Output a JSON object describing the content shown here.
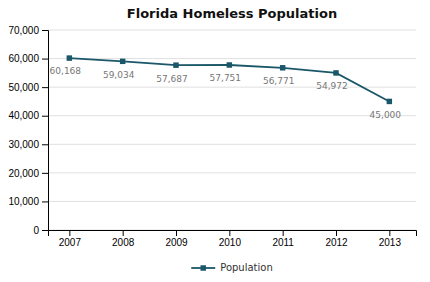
{
  "chart_data": {
    "type": "line",
    "title": "Florida Homeless Population",
    "x": [
      2007,
      2008,
      2009,
      2010,
      2011,
      2012,
      2013
    ],
    "series": [
      {
        "name": "Population",
        "color": "#1a5769",
        "marker": "square",
        "values": [
          60168,
          59034,
          57687,
          57751,
          56771,
          54972,
          45000
        ],
        "value_labels": [
          "60,168",
          "59,034",
          "57,687",
          "57,751",
          "56,771",
          "54,972",
          "45,000"
        ]
      }
    ],
    "xlim": [
      2006.6,
      2013.5
    ],
    "xticks": [
      2007,
      2008,
      2009,
      2010,
      2011,
      2012,
      2013
    ],
    "ylim": [
      0,
      70000
    ],
    "yticks": [
      0,
      {
        "value": 10000,
        "label": "10,000"
      },
      {
        "value": 20000,
        "label": "20,000"
      },
      {
        "value": 30000,
        "label": "30,000"
      },
      {
        "value": 40000,
        "label": "40,000"
      },
      {
        "value": 50000,
        "label": "50,000"
      },
      {
        "value": 60000,
        "label": "60,000"
      },
      {
        "value": 70000,
        "label": "70,000"
      }
    ],
    "grid": true,
    "legend": "bottom",
    "data_labels": true
  }
}
